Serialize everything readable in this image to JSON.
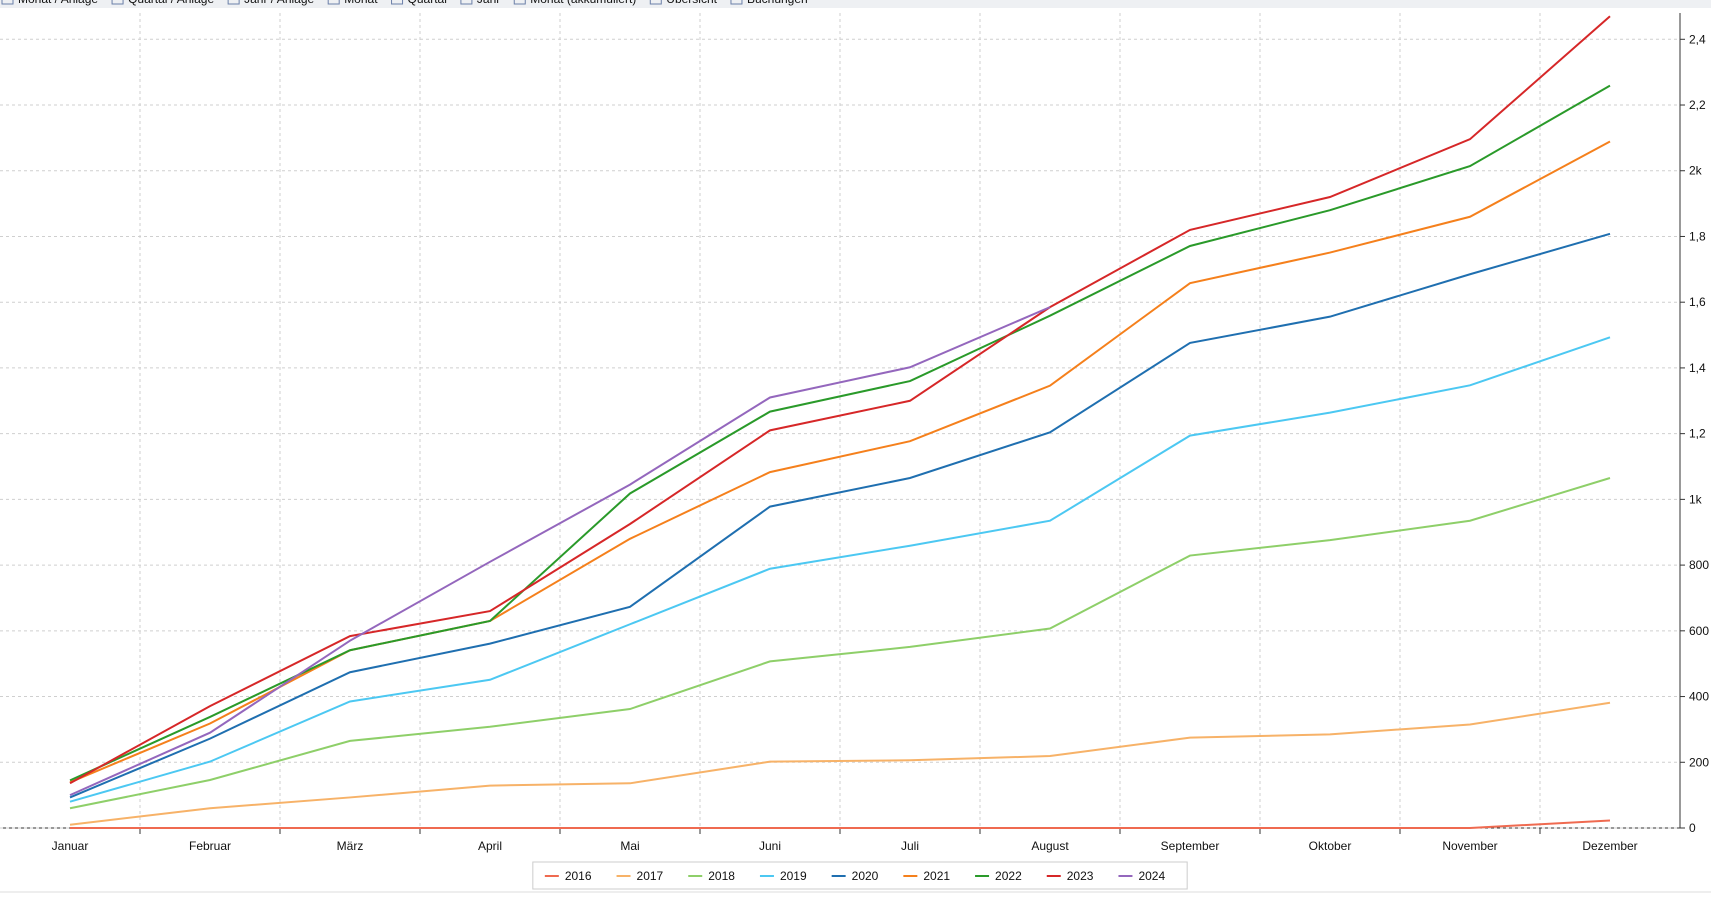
{
  "tabs": [
    "Monat / Anlage",
    "Quartal / Anlage",
    "Jahr / Anlage",
    "Monat",
    "Quartal",
    "Jahr",
    "Monat (akkumuliert)",
    "Übersicht",
    "Buchungen"
  ],
  "chart_data": {
    "type": "line",
    "categories": [
      "Januar",
      "Februar",
      "März",
      "April",
      "Mai",
      "Juni",
      "Juli",
      "August",
      "September",
      "Oktober",
      "November",
      "Dezember"
    ],
    "series": [
      {
        "name": "2016",
        "color": "#ef6a50",
        "values": [
          0,
          0,
          0,
          0,
          0,
          0,
          0,
          0,
          0,
          0,
          0,
          23
        ]
      },
      {
        "name": "2017",
        "color": "#f7b268",
        "values": [
          10,
          60,
          93,
          129,
          136,
          202,
          206,
          219,
          275,
          285,
          315,
          381
        ]
      },
      {
        "name": "2018",
        "color": "#8ecf69",
        "values": [
          60,
          146,
          265,
          308,
          362,
          507,
          551,
          607,
          829,
          876,
          935,
          1065
        ]
      },
      {
        "name": "2019",
        "color": "#4cc8f2",
        "values": [
          80,
          202,
          385,
          451,
          620,
          789,
          859,
          935,
          1194,
          1264,
          1347,
          1493
        ]
      },
      {
        "name": "2020",
        "color": "#1f6fb0",
        "values": [
          93,
          272,
          474,
          561,
          673,
          978,
          1065,
          1204,
          1476,
          1556,
          1685,
          1808
        ]
      },
      {
        "name": "2021",
        "color": "#f5801c",
        "values": [
          139,
          318,
          541,
          630,
          880,
          1083,
          1177,
          1346,
          1658,
          1751,
          1860,
          2089
        ]
      },
      {
        "name": "2022",
        "color": "#2a9a2a",
        "values": [
          145,
          338,
          541,
          630,
          1018,
          1267,
          1360,
          1559,
          1771,
          1880,
          2014,
          2259
        ]
      },
      {
        "name": "2023",
        "color": "#d62728",
        "values": [
          136,
          371,
          584,
          660,
          925,
          1210,
          1300,
          1585,
          1820,
          1920,
          2096,
          2470
        ]
      },
      {
        "name": "2024",
        "color": "#9467bd",
        "values": [
          100,
          290,
          570,
          810,
          1045,
          1310,
          1402,
          1585,
          null,
          null,
          null,
          null
        ]
      }
    ],
    "ylim": [
      0,
      2480
    ],
    "yticks": [
      0,
      200,
      400,
      600,
      800,
      {
        "value": 1000,
        "label": "1k"
      },
      {
        "value": 1200,
        "label": "1,2"
      },
      {
        "value": 1400,
        "label": "1,4"
      },
      {
        "value": 1600,
        "label": "1,6"
      },
      {
        "value": 1800,
        "label": "1,8"
      },
      {
        "value": 2000,
        "label": "2k"
      },
      {
        "value": 2200,
        "label": "2,2"
      },
      {
        "value": 2400,
        "label": "2,4"
      }
    ],
    "grid": true,
    "legend": "bottom"
  }
}
